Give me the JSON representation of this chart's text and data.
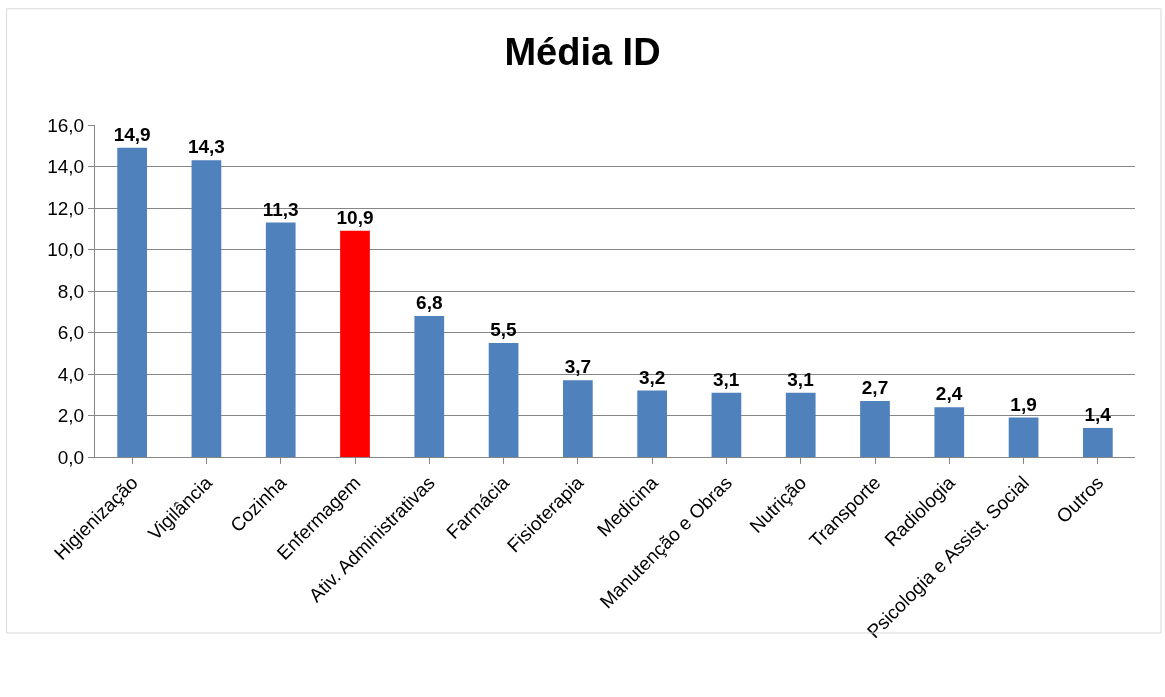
{
  "chart_data": {
    "type": "bar",
    "title": "Média ID",
    "categories": [
      "Higienização",
      "Vigilância",
      "Cozinha",
      "Enfermagem",
      "Ativ. Administrativas",
      "Farmácia",
      "Fisioterapia",
      "Medicina",
      "Manutenção e Obras",
      "Nutrição",
      "Transporte",
      "Radiologia",
      "Psicologia e Assist. Social",
      "Outros"
    ],
    "values": [
      14.9,
      14.3,
      11.3,
      10.9,
      6.8,
      5.5,
      3.7,
      3.2,
      3.1,
      3.1,
      2.7,
      2.4,
      1.9,
      1.4
    ],
    "value_labels": [
      "14,9",
      "14,3",
      "11,3",
      "10,9",
      "6,8",
      "5,5",
      "3,7",
      "3,2",
      "3,1",
      "3,1",
      "2,7",
      "2,4",
      "1,9",
      "1,4"
    ],
    "colors": [
      "#4f81bd",
      "#4f81bd",
      "#4f81bd",
      "#ff0000",
      "#4f81bd",
      "#4f81bd",
      "#4f81bd",
      "#4f81bd",
      "#4f81bd",
      "#4f81bd",
      "#4f81bd",
      "#4f81bd",
      "#4f81bd",
      "#4f81bd"
    ],
    "ylim": [
      0,
      16
    ],
    "yticks": [
      {
        "value": 0,
        "label": "0,0"
      },
      {
        "value": 2,
        "label": "2,0"
      },
      {
        "value": 4,
        "label": "4,0"
      },
      {
        "value": 6,
        "label": "6,0"
      },
      {
        "value": 8,
        "label": "8,0"
      },
      {
        "value": 10,
        "label": "10,0"
      },
      {
        "value": 12,
        "label": "12,0"
      },
      {
        "value": 14,
        "label": "14,0"
      },
      {
        "value": 16,
        "label": "16,0"
      }
    ],
    "grid": "y"
  }
}
